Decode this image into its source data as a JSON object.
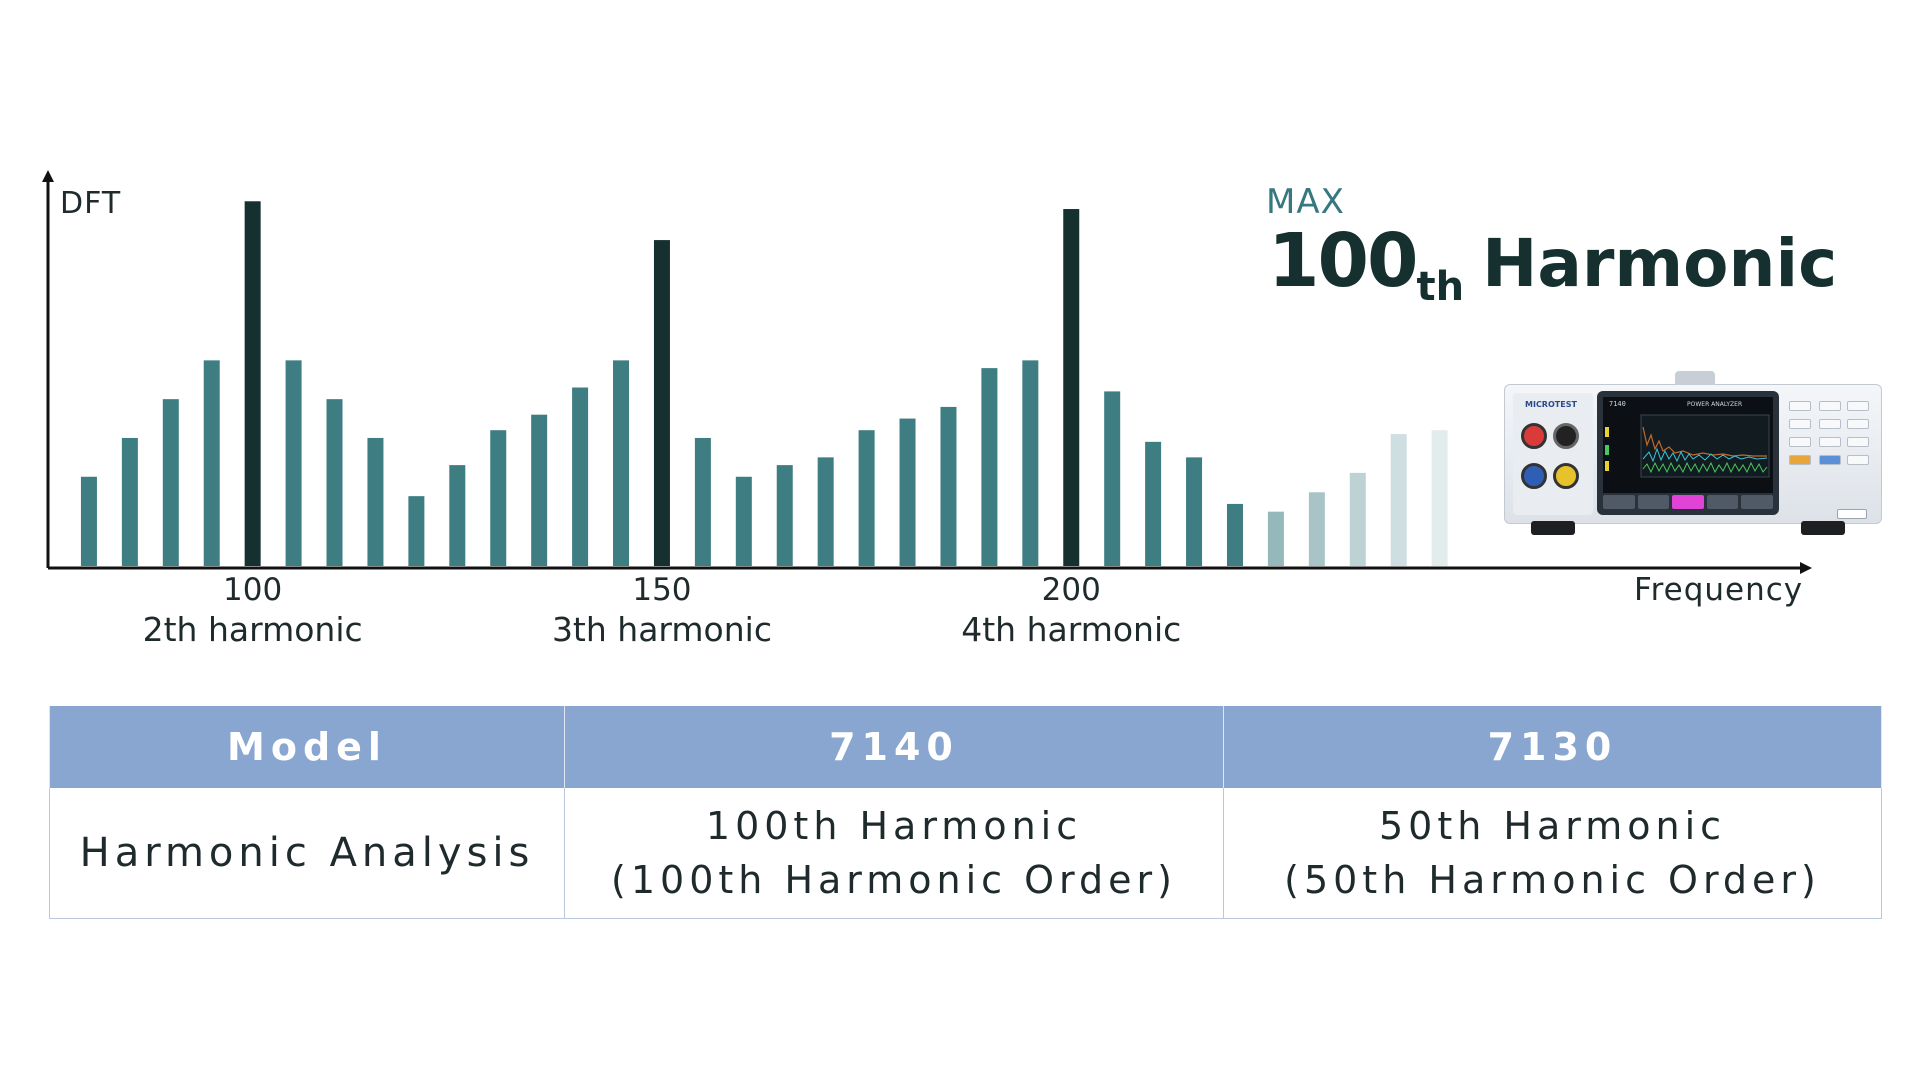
{
  "chart_data": {
    "type": "bar",
    "ylabel": "DFT",
    "xlabel": "Frequency",
    "x_ticks": [
      {
        "value": 100,
        "label": "100",
        "sublabel": "2th harmonic"
      },
      {
        "value": 150,
        "label": "150",
        "sublabel": "3th harmonic"
      },
      {
        "value": 200,
        "label": "200",
        "sublabel": "4th harmonic"
      }
    ],
    "x": [
      80,
      85,
      90,
      95,
      100,
      105,
      110,
      115,
      120,
      125,
      130,
      135,
      140,
      145,
      150,
      155,
      160,
      165,
      170,
      175,
      180,
      185,
      190,
      195,
      200,
      205,
      210,
      215,
      220,
      225,
      230,
      235,
      240,
      245
    ],
    "values": [
      23,
      33,
      43,
      53,
      94,
      53,
      43,
      33,
      18,
      26,
      35,
      39,
      46,
      53,
      84,
      33,
      23,
      26,
      28,
      35,
      38,
      41,
      51,
      53,
      92,
      45,
      32,
      28,
      16,
      14,
      19,
      24,
      34,
      35
    ],
    "xlim": [
      75,
      290
    ],
    "ylim": [
      0,
      100
    ],
    "highlight_x": [
      100,
      150,
      200
    ],
    "colors": {
      "bar": "#3e7d82",
      "peak": "#16302f",
      "axis": "#111111"
    },
    "fade_from_index": 29,
    "grid": false,
    "legend": "none"
  },
  "promo": {
    "max_label": "MAX",
    "number": "100",
    "suffix": "th",
    "word": "Harmonic"
  },
  "device": {
    "brand": "MICROTEST",
    "model": "7140",
    "name": "POWER ANALYZER"
  },
  "table": {
    "headers": [
      "Model",
      "7140",
      "7130"
    ],
    "row_label": "Harmonic  Analysis",
    "c7140_line1": "100th  Harmonic",
    "c7140_line2": "(100th  Harmonic  Order)",
    "c7130_line1": "50th  Harmonic",
    "c7130_line2": "(50th  Harmonic  Order)",
    "header_color": "#88a6d0"
  }
}
